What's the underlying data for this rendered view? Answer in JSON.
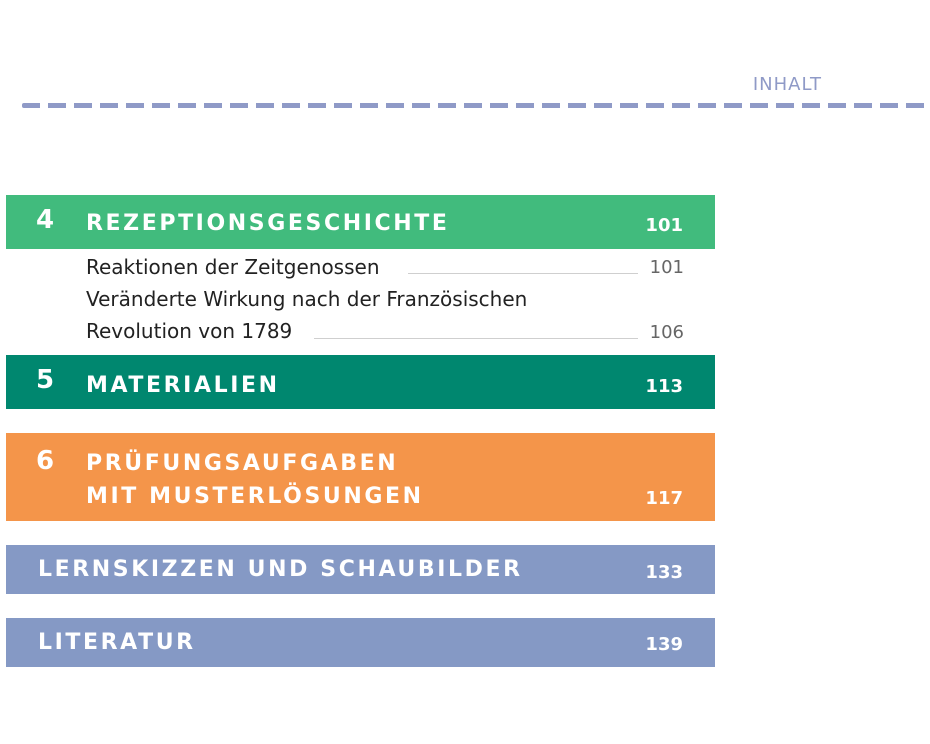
{
  "colors": {
    "green": "#41bb7d",
    "teal": "#00876f",
    "orange": "#f4954a",
    "slate": "#8599c5",
    "muted": "#8f9ac7"
  },
  "header": {
    "label": "INHALT"
  },
  "chapters": [
    {
      "number": "4",
      "title_lines": [
        "REZEPTIONSGESCHICHTE"
      ],
      "page": "101"
    },
    {
      "number": "5",
      "title_lines": [
        "MATERIALIEN"
      ],
      "page": "113"
    },
    {
      "number": "6",
      "title_lines": [
        "PRÜFUNGSAUFGABEN",
        "MIT MUSTERLÖSUNGEN"
      ],
      "page": "117"
    }
  ],
  "entries": [
    {
      "lines": [
        "Reaktionen der Zeitgenossen"
      ],
      "page": "101"
    },
    {
      "lines": [
        "Veränderte Wirkung nach der Französischen",
        "Revolution von 1789"
      ],
      "page": "106"
    }
  ],
  "extras": [
    {
      "title": "LERNSKIZZEN UND SCHAUBILDER",
      "page": "133"
    },
    {
      "title": "LITERATUR",
      "page": "139"
    }
  ]
}
